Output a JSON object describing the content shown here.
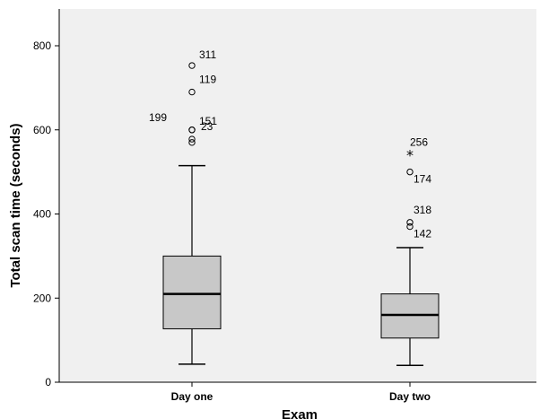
{
  "chart_data": {
    "type": "boxplot",
    "xlabel": "Exam",
    "ylabel": "Total scan time (seconds)",
    "ylim": [
      0,
      880
    ],
    "yticks": [
      0,
      200,
      400,
      600,
      800
    ],
    "grid": false,
    "colors": {
      "plot_bg": "#f0f0f0",
      "box_fill": "#c8c8c8",
      "stroke": "#000000"
    },
    "categories": [
      "Day one",
      "Day two"
    ],
    "boxes": [
      {
        "category": "Day one",
        "whisker_low": 43,
        "q1": 127,
        "median": 210,
        "q3": 300,
        "whisker_high": 515,
        "outliers": [
          {
            "value": 753,
            "marker": "circle",
            "label": "311"
          },
          {
            "value": 690,
            "marker": "circle",
            "label": "119"
          },
          {
            "value": 600,
            "marker": "circle",
            "label": "199"
          },
          {
            "value": 600,
            "marker": "circle",
            "label": "23"
          },
          {
            "value": 578,
            "marker": "circle",
            "label": ""
          },
          {
            "value": 570,
            "marker": "circle",
            "label": "151"
          }
        ]
      },
      {
        "category": "Day two",
        "whisker_low": 40,
        "q1": 105,
        "median": 160,
        "q3": 210,
        "whisker_high": 320,
        "outliers": [
          {
            "value": 545,
            "marker": "star",
            "label": "256"
          },
          {
            "value": 500,
            "marker": "circle",
            "label": "174"
          },
          {
            "value": 380,
            "marker": "circle",
            "label": "318"
          },
          {
            "value": 370,
            "marker": "circle",
            "label": "142"
          }
        ]
      }
    ]
  }
}
